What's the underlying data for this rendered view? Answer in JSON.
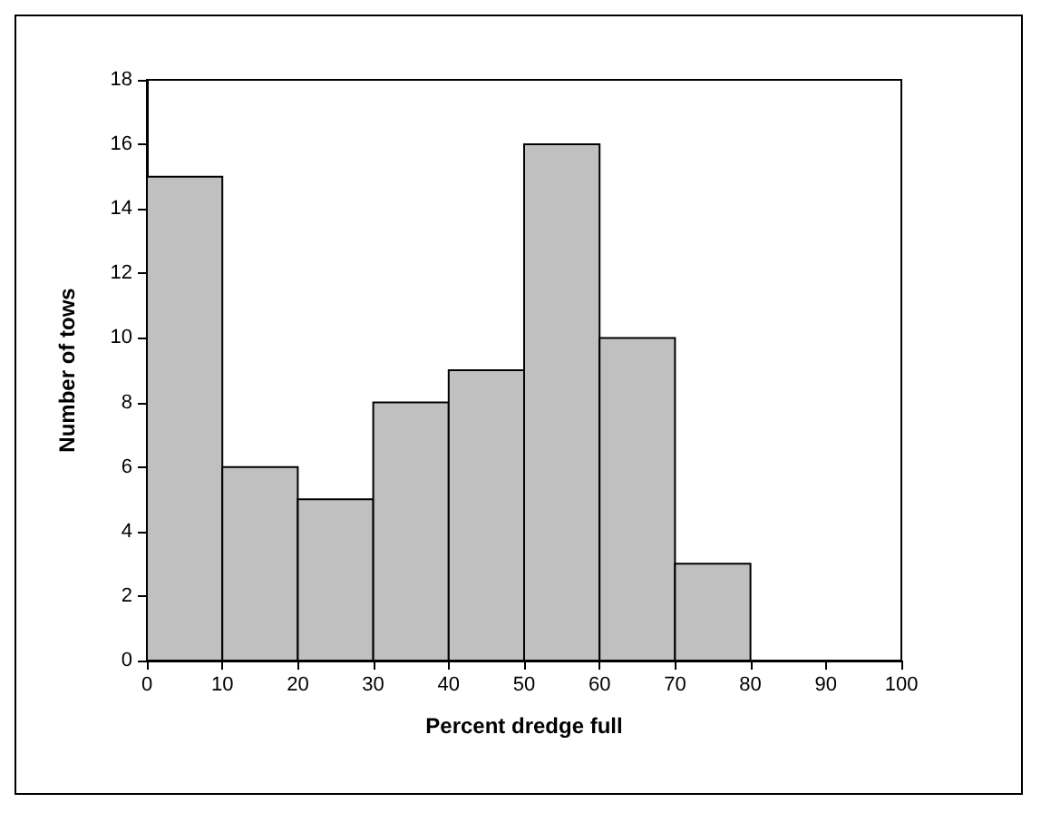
{
  "chart_data": {
    "type": "histogram",
    "xlabel": "Percent dredge full",
    "ylabel": "Number of tows",
    "bins": [
      0,
      10,
      20,
      30,
      40,
      50,
      60,
      70,
      80,
      90,
      100
    ],
    "values": [
      15,
      6,
      5,
      8,
      9,
      16,
      10,
      3,
      0,
      0
    ],
    "color": "#c0c0c0",
    "xlim": [
      0,
      100
    ],
    "xticks": [
      0,
      10,
      20,
      30,
      40,
      50,
      60,
      70,
      80,
      90,
      100
    ],
    "ylim": [
      0,
      18
    ],
    "yticks": [
      0,
      2,
      4,
      6,
      8,
      10,
      12,
      14,
      16,
      18
    ],
    "grid": false
  }
}
